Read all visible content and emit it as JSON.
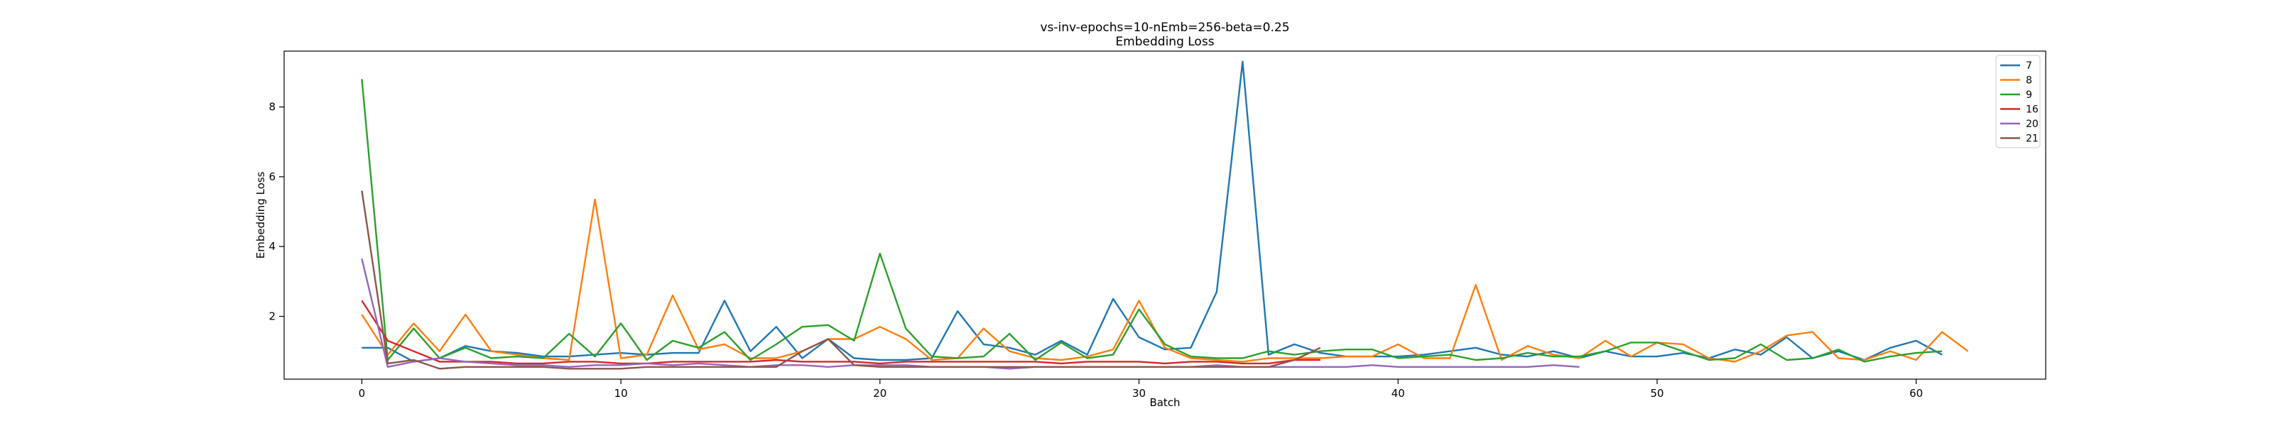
{
  "chart_data": {
    "type": "line",
    "title": "vs-inv-epochs=10-nEmb=256-beta=0.25",
    "subtitle": "Embedding Loss",
    "xlabel": "Batch",
    "ylabel": "Embedding Loss",
    "xlim": [
      -3,
      65
    ],
    "ylim": [
      0.2,
      9.6
    ],
    "xticks": [
      0,
      10,
      20,
      30,
      40,
      50,
      60
    ],
    "yticks": [
      2,
      4,
      6,
      8
    ],
    "grid": false,
    "legend_position": "top-right",
    "series": [
      {
        "name": "7",
        "color": "#1f77b4",
        "values": [
          1.1,
          1.1,
          0.7,
          0.8,
          1.15,
          1.0,
          0.95,
          0.85,
          0.85,
          0.9,
          0.95,
          0.9,
          0.95,
          0.95,
          2.45,
          1.0,
          1.7,
          0.8,
          1.35,
          0.8,
          0.75,
          0.75,
          0.8,
          2.15,
          1.2,
          1.1,
          0.9,
          1.3,
          0.9,
          2.5,
          1.4,
          1.05,
          1.1,
          2.7,
          9.3,
          0.9,
          1.2,
          0.95,
          0.85,
          0.85,
          0.85,
          0.9,
          1.0,
          1.1,
          0.9,
          0.85,
          1.0,
          0.8,
          1.0,
          0.85,
          0.85,
          0.95,
          0.8,
          1.05,
          0.9,
          1.4,
          0.8,
          1.0,
          0.75,
          1.1,
          1.3,
          0.9
        ]
      },
      {
        "name": "8",
        "color": "#ff7f0e",
        "values": [
          2.05,
          0.9,
          1.8,
          1.0,
          2.05,
          1.0,
          0.9,
          0.8,
          0.75,
          5.35,
          0.8,
          0.9,
          2.6,
          1.05,
          1.2,
          0.8,
          0.8,
          1.0,
          1.35,
          1.35,
          1.7,
          1.35,
          0.75,
          0.8,
          1.65,
          1.0,
          0.8,
          0.75,
          0.85,
          1.05,
          2.45,
          1.1,
          0.8,
          0.75,
          0.7,
          0.8,
          0.8,
          0.8,
          0.85,
          0.85,
          1.2,
          0.8,
          0.8,
          2.9,
          0.75,
          1.15,
          0.9,
          0.8,
          1.3,
          0.85,
          1.25,
          1.2,
          0.8,
          0.7,
          1.0,
          1.45,
          1.55,
          0.8,
          0.75,
          1.0,
          0.75,
          1.55,
          1.0
        ]
      },
      {
        "name": "9",
        "color": "#2ca02c",
        "values": [
          8.8,
          0.75,
          1.65,
          0.8,
          1.1,
          0.8,
          0.85,
          0.8,
          1.5,
          0.85,
          1.8,
          0.75,
          1.3,
          1.1,
          1.55,
          0.75,
          1.2,
          1.7,
          1.75,
          1.3,
          3.8,
          1.65,
          0.85,
          0.8,
          0.85,
          1.5,
          0.75,
          1.25,
          0.8,
          0.9,
          2.2,
          1.2,
          0.85,
          0.8,
          0.8,
          1.0,
          0.9,
          1.0,
          1.05,
          1.05,
          0.8,
          0.85,
          0.9,
          0.75,
          0.8,
          0.95,
          0.85,
          0.85,
          1.0,
          1.25,
          1.25,
          1.0,
          0.75,
          0.8,
          1.2,
          0.75,
          0.8,
          1.05,
          0.7,
          0.85,
          0.95,
          1.0
        ]
      },
      {
        "name": "16",
        "color": "#d62728",
        "values": [
          2.45,
          1.3,
          1.0,
          0.7,
          0.7,
          0.7,
          0.65,
          0.65,
          0.7,
          0.7,
          0.65,
          0.65,
          0.7,
          0.7,
          0.7,
          0.7,
          0.75,
          0.7,
          0.7,
          0.7,
          0.65,
          0.7,
          0.7,
          0.7,
          0.7,
          0.7,
          0.7,
          0.65,
          0.7,
          0.7,
          0.7,
          0.65,
          0.7,
          0.7,
          0.65,
          0.65,
          0.75,
          0.75
        ]
      },
      {
        "name": "20",
        "color": "#9467bd",
        "values": [
          3.65,
          0.55,
          0.7,
          0.8,
          0.7,
          0.65,
          0.6,
          0.6,
          0.55,
          0.6,
          0.6,
          0.65,
          0.6,
          0.65,
          0.6,
          0.55,
          0.6,
          0.6,
          0.55,
          0.6,
          0.6,
          0.6,
          0.55,
          0.55,
          0.55,
          0.5,
          0.55,
          0.55,
          0.55,
          0.55,
          0.55,
          0.55,
          0.55,
          0.6,
          0.55,
          0.55,
          0.55,
          0.55,
          0.55,
          0.6,
          0.55,
          0.55,
          0.55,
          0.55,
          0.55,
          0.55,
          0.6,
          0.55
        ]
      },
      {
        "name": "21",
        "color": "#8c564b",
        "values": [
          5.6,
          0.65,
          0.75,
          0.5,
          0.55,
          0.55,
          0.55,
          0.55,
          0.5,
          0.5,
          0.5,
          0.55,
          0.55,
          0.55,
          0.55,
          0.55,
          0.55,
          1.0,
          1.35,
          0.6,
          0.55,
          0.55,
          0.55,
          0.55,
          0.55,
          0.55,
          0.55,
          0.55,
          0.55,
          0.55,
          0.55,
          0.55,
          0.55,
          0.55,
          0.55,
          0.55,
          0.75,
          1.1
        ]
      }
    ]
  }
}
